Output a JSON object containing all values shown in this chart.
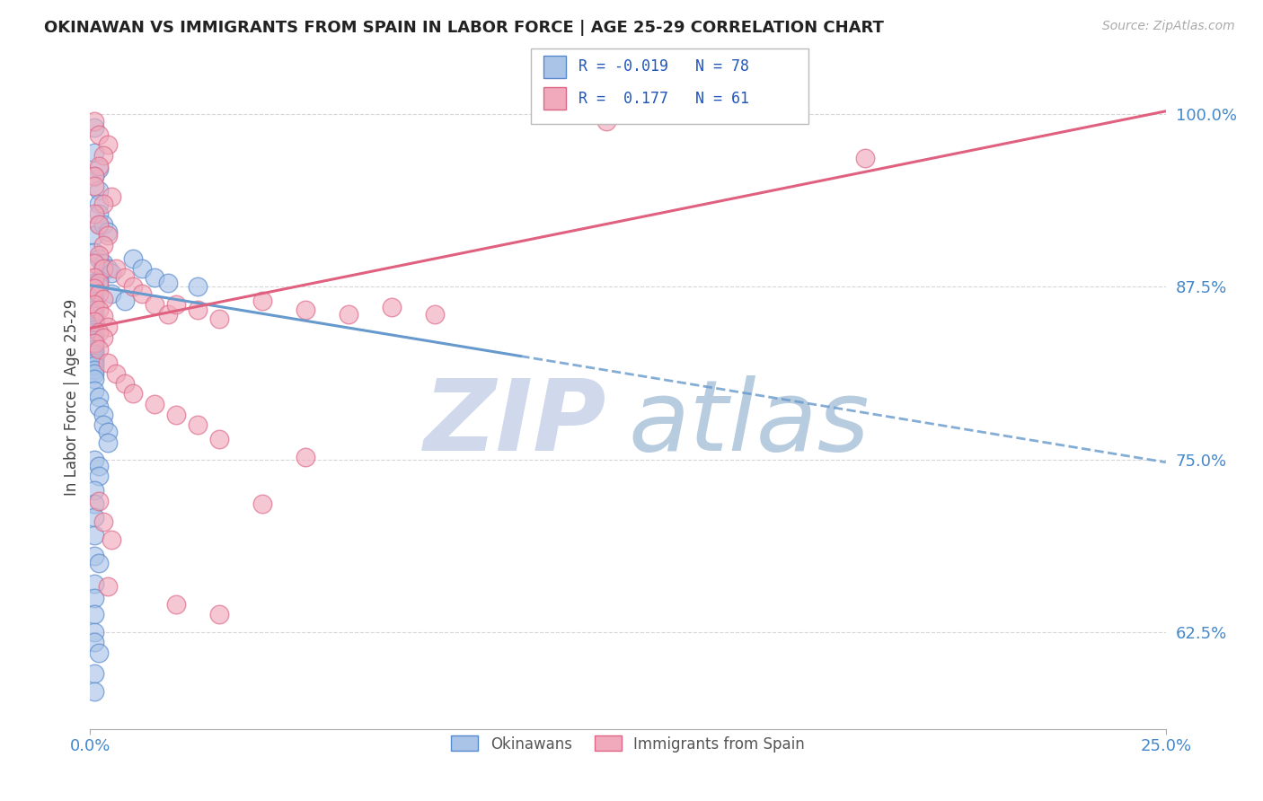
{
  "title": "OKINAWAN VS IMMIGRANTS FROM SPAIN IN LABOR FORCE | AGE 25-29 CORRELATION CHART",
  "source": "Source: ZipAtlas.com",
  "ylabel": "In Labor Force | Age 25-29",
  "xlim": [
    0.0,
    0.25
  ],
  "ylim": [
    0.555,
    1.035
  ],
  "yticks": [
    0.625,
    0.75,
    0.875,
    1.0
  ],
  "yticklabels": [
    "62.5%",
    "75.0%",
    "87.5%",
    "100.0%"
  ],
  "okinawan_color": "#aac4e8",
  "spain_color": "#f0aabb",
  "okinawan_edge_color": "#5588cc",
  "spain_edge_color": "#dd6688",
  "okinawan_line_color": "#6699cc",
  "spain_line_color": "#e06080",
  "background_color": "#ffffff",
  "grid_color": "#cccccc",
  "title_color": "#222222",
  "tick_color": "#4488cc",
  "ok_line_x0": 0.0,
  "ok_line_y0": 0.876,
  "ok_line_x1": 0.25,
  "ok_line_y1": 0.748,
  "sp_line_x0": 0.0,
  "sp_line_y0": 0.845,
  "sp_line_x1": 0.25,
  "sp_line_y1": 1.002,
  "okinawan_points": [
    [
      0.001,
      0.99
    ],
    [
      0.001,
      0.972
    ],
    [
      0.002,
      0.96
    ],
    [
      0.001,
      0.955
    ],
    [
      0.002,
      0.945
    ],
    [
      0.002,
      0.935
    ],
    [
      0.002,
      0.928
    ],
    [
      0.002,
      0.92
    ],
    [
      0.001,
      0.912
    ],
    [
      0.003,
      0.92
    ],
    [
      0.004,
      0.915
    ],
    [
      0.001,
      0.9
    ],
    [
      0.002,
      0.895
    ],
    [
      0.003,
      0.892
    ],
    [
      0.003,
      0.888
    ],
    [
      0.004,
      0.888
    ],
    [
      0.005,
      0.885
    ],
    [
      0.001,
      0.882
    ],
    [
      0.002,
      0.88
    ],
    [
      0.001,
      0.878
    ],
    [
      0.001,
      0.876
    ],
    [
      0.002,
      0.875
    ],
    [
      0.001,
      0.874
    ],
    [
      0.001,
      0.872
    ],
    [
      0.001,
      0.87
    ],
    [
      0.001,
      0.868
    ],
    [
      0.001,
      0.866
    ],
    [
      0.001,
      0.864
    ],
    [
      0.001,
      0.862
    ],
    [
      0.001,
      0.86
    ],
    [
      0.001,
      0.858
    ],
    [
      0.001,
      0.856
    ],
    [
      0.001,
      0.854
    ],
    [
      0.001,
      0.852
    ],
    [
      0.001,
      0.85
    ],
    [
      0.001,
      0.848
    ],
    [
      0.001,
      0.846
    ],
    [
      0.001,
      0.844
    ],
    [
      0.001,
      0.842
    ],
    [
      0.001,
      0.84
    ],
    [
      0.001,
      0.838
    ],
    [
      0.001,
      0.836
    ],
    [
      0.001,
      0.834
    ],
    [
      0.001,
      0.832
    ],
    [
      0.001,
      0.83
    ],
    [
      0.001,
      0.828
    ],
    [
      0.001,
      0.826
    ],
    [
      0.001,
      0.824
    ],
    [
      0.001,
      0.822
    ],
    [
      0.001,
      0.82
    ],
    [
      0.001,
      0.818
    ],
    [
      0.001,
      0.815
    ],
    [
      0.001,
      0.812
    ],
    [
      0.001,
      0.808
    ],
    [
      0.01,
      0.895
    ],
    [
      0.012,
      0.888
    ],
    [
      0.015,
      0.882
    ],
    [
      0.018,
      0.878
    ],
    [
      0.025,
      0.875
    ],
    [
      0.005,
      0.87
    ],
    [
      0.008,
      0.865
    ],
    [
      0.001,
      0.8
    ],
    [
      0.002,
      0.795
    ],
    [
      0.002,
      0.788
    ],
    [
      0.003,
      0.782
    ],
    [
      0.003,
      0.775
    ],
    [
      0.004,
      0.77
    ],
    [
      0.004,
      0.762
    ],
    [
      0.001,
      0.75
    ],
    [
      0.002,
      0.745
    ],
    [
      0.002,
      0.738
    ],
    [
      0.001,
      0.728
    ],
    [
      0.001,
      0.718
    ],
    [
      0.001,
      0.708
    ],
    [
      0.001,
      0.695
    ],
    [
      0.001,
      0.68
    ],
    [
      0.002,
      0.675
    ],
    [
      0.001,
      0.66
    ],
    [
      0.001,
      0.65
    ],
    [
      0.001,
      0.638
    ],
    [
      0.001,
      0.625
    ],
    [
      0.001,
      0.618
    ],
    [
      0.002,
      0.61
    ],
    [
      0.001,
      0.595
    ],
    [
      0.001,
      0.582
    ]
  ],
  "spain_points": [
    [
      0.001,
      0.995
    ],
    [
      0.002,
      0.985
    ],
    [
      0.004,
      0.978
    ],
    [
      0.003,
      0.97
    ],
    [
      0.002,
      0.962
    ],
    [
      0.001,
      0.955
    ],
    [
      0.001,
      0.948
    ],
    [
      0.005,
      0.94
    ],
    [
      0.003,
      0.935
    ],
    [
      0.001,
      0.928
    ],
    [
      0.002,
      0.92
    ],
    [
      0.004,
      0.912
    ],
    [
      0.003,
      0.905
    ],
    [
      0.002,
      0.898
    ],
    [
      0.001,
      0.892
    ],
    [
      0.003,
      0.888
    ],
    [
      0.001,
      0.882
    ],
    [
      0.002,
      0.878
    ],
    [
      0.001,
      0.874
    ],
    [
      0.002,
      0.87
    ],
    [
      0.003,
      0.866
    ],
    [
      0.001,
      0.862
    ],
    [
      0.002,
      0.858
    ],
    [
      0.003,
      0.854
    ],
    [
      0.001,
      0.85
    ],
    [
      0.004,
      0.846
    ],
    [
      0.002,
      0.842
    ],
    [
      0.003,
      0.838
    ],
    [
      0.001,
      0.834
    ],
    [
      0.002,
      0.83
    ],
    [
      0.006,
      0.888
    ],
    [
      0.008,
      0.882
    ],
    [
      0.01,
      0.875
    ],
    [
      0.012,
      0.87
    ],
    [
      0.015,
      0.862
    ],
    [
      0.018,
      0.855
    ],
    [
      0.02,
      0.862
    ],
    [
      0.025,
      0.858
    ],
    [
      0.03,
      0.852
    ],
    [
      0.04,
      0.865
    ],
    [
      0.05,
      0.858
    ],
    [
      0.06,
      0.855
    ],
    [
      0.07,
      0.86
    ],
    [
      0.08,
      0.855
    ],
    [
      0.004,
      0.82
    ],
    [
      0.006,
      0.812
    ],
    [
      0.008,
      0.805
    ],
    [
      0.01,
      0.798
    ],
    [
      0.015,
      0.79
    ],
    [
      0.02,
      0.782
    ],
    [
      0.025,
      0.775
    ],
    [
      0.03,
      0.765
    ],
    [
      0.05,
      0.752
    ],
    [
      0.002,
      0.72
    ],
    [
      0.003,
      0.705
    ],
    [
      0.005,
      0.692
    ],
    [
      0.04,
      0.718
    ],
    [
      0.004,
      0.658
    ],
    [
      0.02,
      0.645
    ],
    [
      0.03,
      0.638
    ],
    [
      0.12,
      0.995
    ],
    [
      0.18,
      0.968
    ]
  ]
}
